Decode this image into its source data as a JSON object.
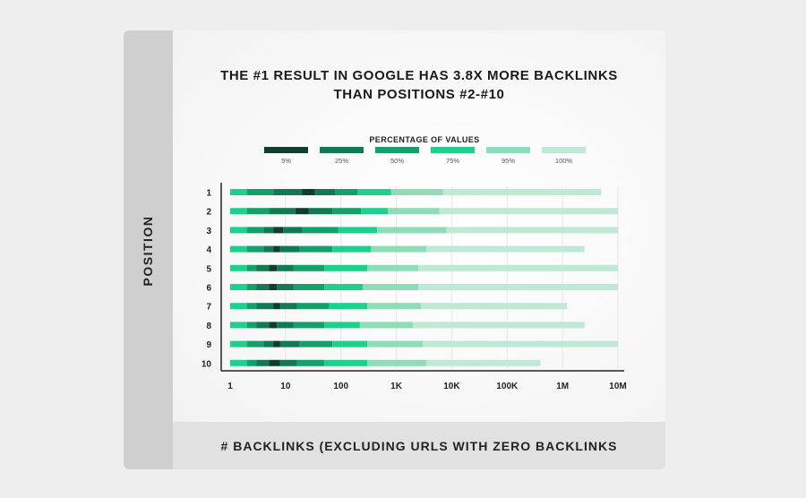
{
  "chart_data": {
    "type": "bar",
    "title_line1": "THE #1 RESULT IN GOOGLE HAS 3.8X MORE BACKLINKS",
    "title_line2": "THAN POSITIONS #2-#10",
    "ylabel": "POSITION",
    "xlabel": "# BACKLINKS (EXCLUDING URLS WITH ZERO BACKLINKS",
    "legend_title": "PERCENTAGE OF VALUES",
    "legend_position": "top-center",
    "x_scale": "log",
    "x_ticks": [
      "1",
      "10",
      "100",
      "1K",
      "10K",
      "100K",
      "1M",
      "10M"
    ],
    "x_tick_values": [
      1,
      10,
      100,
      1000,
      10000,
      100000,
      1000000,
      10000000
    ],
    "xlim": [
      1,
      10000000
    ],
    "categories": [
      "1",
      "2",
      "3",
      "4",
      "5",
      "6",
      "7",
      "8",
      "9",
      "10"
    ],
    "percentiles": [
      {
        "label": "5%",
        "color": "#103d2e"
      },
      {
        "label": "25%",
        "color": "#127a52"
      },
      {
        "label": "50%",
        "color": "#15a06b"
      },
      {
        "label": "75%",
        "color": "#1fd08c"
      },
      {
        "label": "95%",
        "color": "#8fdcb8"
      },
      {
        "label": "100%",
        "color": "#bfe8d5"
      }
    ],
    "rows": [
      {
        "position": "1",
        "segments": [
          {
            "from": 1,
            "to": 2,
            "color": "#1fd08c"
          },
          {
            "from": 2,
            "to": 6,
            "color": "#15a06b"
          },
          {
            "from": 6,
            "to": 20,
            "color": "#127a52"
          },
          {
            "from": 20,
            "to": 34,
            "color": "#103d2e"
          },
          {
            "from": 34,
            "to": 80,
            "color": "#127a52"
          },
          {
            "from": 80,
            "to": 200,
            "color": "#15a06b"
          },
          {
            "from": 200,
            "to": 800,
            "color": "#1fd08c"
          },
          {
            "from": 800,
            "to": 7000,
            "color": "#8fdcb8"
          },
          {
            "from": 7000,
            "to": 5000000,
            "color": "#bfe8d5"
          }
        ]
      },
      {
        "position": "2",
        "segments": [
          {
            "from": 1,
            "to": 2,
            "color": "#1fd08c"
          },
          {
            "from": 2,
            "to": 5,
            "color": "#15a06b"
          },
          {
            "from": 5,
            "to": 15,
            "color": "#127a52"
          },
          {
            "from": 15,
            "to": 26,
            "color": "#103d2e"
          },
          {
            "from": 26,
            "to": 70,
            "color": "#127a52"
          },
          {
            "from": 70,
            "to": 230,
            "color": "#15a06b"
          },
          {
            "from": 230,
            "to": 700,
            "color": "#1fd08c"
          },
          {
            "from": 700,
            "to": 6000,
            "color": "#8fdcb8"
          },
          {
            "from": 6000,
            "to": 10000000,
            "color": "#bfe8d5"
          }
        ]
      },
      {
        "position": "3",
        "segments": [
          {
            "from": 1,
            "to": 2,
            "color": "#1fd08c"
          },
          {
            "from": 2,
            "to": 4,
            "color": "#15a06b"
          },
          {
            "from": 4,
            "to": 6,
            "color": "#127a52"
          },
          {
            "from": 6,
            "to": 9,
            "color": "#103d2e"
          },
          {
            "from": 9,
            "to": 20,
            "color": "#127a52"
          },
          {
            "from": 20,
            "to": 90,
            "color": "#15a06b"
          },
          {
            "from": 90,
            "to": 450,
            "color": "#1fd08c"
          },
          {
            "from": 450,
            "to": 8000,
            "color": "#8fdcb8"
          },
          {
            "from": 8000,
            "to": 10000000,
            "color": "#bfe8d5"
          }
        ]
      },
      {
        "position": "4",
        "segments": [
          {
            "from": 1,
            "to": 2,
            "color": "#1fd08c"
          },
          {
            "from": 2,
            "to": 4,
            "color": "#15a06b"
          },
          {
            "from": 4,
            "to": 6,
            "color": "#127a52"
          },
          {
            "from": 6,
            "to": 8,
            "color": "#103d2e"
          },
          {
            "from": 8,
            "to": 18,
            "color": "#127a52"
          },
          {
            "from": 18,
            "to": 70,
            "color": "#15a06b"
          },
          {
            "from": 70,
            "to": 350,
            "color": "#1fd08c"
          },
          {
            "from": 350,
            "to": 3500,
            "color": "#8fdcb8"
          },
          {
            "from": 3500,
            "to": 2500000,
            "color": "#bfe8d5"
          }
        ]
      },
      {
        "position": "5",
        "segments": [
          {
            "from": 1,
            "to": 2,
            "color": "#1fd08c"
          },
          {
            "from": 2,
            "to": 3,
            "color": "#15a06b"
          },
          {
            "from": 3,
            "to": 5,
            "color": "#127a52"
          },
          {
            "from": 5,
            "to": 7,
            "color": "#103d2e"
          },
          {
            "from": 7,
            "to": 14,
            "color": "#127a52"
          },
          {
            "from": 14,
            "to": 50,
            "color": "#15a06b"
          },
          {
            "from": 50,
            "to": 300,
            "color": "#1fd08c"
          },
          {
            "from": 300,
            "to": 2500,
            "color": "#8fdcb8"
          },
          {
            "from": 2500,
            "to": 10000000,
            "color": "#bfe8d5"
          }
        ]
      },
      {
        "position": "6",
        "segments": [
          {
            "from": 1,
            "to": 2,
            "color": "#1fd08c"
          },
          {
            "from": 2,
            "to": 3,
            "color": "#15a06b"
          },
          {
            "from": 3,
            "to": 5,
            "color": "#127a52"
          },
          {
            "from": 5,
            "to": 7,
            "color": "#103d2e"
          },
          {
            "from": 7,
            "to": 14,
            "color": "#127a52"
          },
          {
            "from": 14,
            "to": 50,
            "color": "#15a06b"
          },
          {
            "from": 50,
            "to": 250,
            "color": "#1fd08c"
          },
          {
            "from": 250,
            "to": 2500,
            "color": "#8fdcb8"
          },
          {
            "from": 2500,
            "to": 10000000,
            "color": "#bfe8d5"
          }
        ]
      },
      {
        "position": "7",
        "segments": [
          {
            "from": 1,
            "to": 2,
            "color": "#1fd08c"
          },
          {
            "from": 2,
            "to": 3,
            "color": "#15a06b"
          },
          {
            "from": 3,
            "to": 6,
            "color": "#127a52"
          },
          {
            "from": 6,
            "to": 8,
            "color": "#103d2e"
          },
          {
            "from": 8,
            "to": 16,
            "color": "#127a52"
          },
          {
            "from": 16,
            "to": 60,
            "color": "#15a06b"
          },
          {
            "from": 60,
            "to": 300,
            "color": "#1fd08c"
          },
          {
            "from": 300,
            "to": 2800,
            "color": "#8fdcb8"
          },
          {
            "from": 2800,
            "to": 1200000,
            "color": "#bfe8d5"
          }
        ]
      },
      {
        "position": "8",
        "segments": [
          {
            "from": 1,
            "to": 2,
            "color": "#1fd08c"
          },
          {
            "from": 2,
            "to": 3,
            "color": "#15a06b"
          },
          {
            "from": 3,
            "to": 5,
            "color": "#127a52"
          },
          {
            "from": 5,
            "to": 7,
            "color": "#103d2e"
          },
          {
            "from": 7,
            "to": 14,
            "color": "#127a52"
          },
          {
            "from": 14,
            "to": 50,
            "color": "#15a06b"
          },
          {
            "from": 50,
            "to": 220,
            "color": "#1fd08c"
          },
          {
            "from": 220,
            "to": 2000,
            "color": "#8fdcb8"
          },
          {
            "from": 2000,
            "to": 2500000,
            "color": "#bfe8d5"
          }
        ]
      },
      {
        "position": "9",
        "segments": [
          {
            "from": 1,
            "to": 2,
            "color": "#1fd08c"
          },
          {
            "from": 2,
            "to": 4,
            "color": "#15a06b"
          },
          {
            "from": 4,
            "to": 6,
            "color": "#127a52"
          },
          {
            "from": 6,
            "to": 8,
            "color": "#103d2e"
          },
          {
            "from": 8,
            "to": 18,
            "color": "#127a52"
          },
          {
            "from": 18,
            "to": 70,
            "color": "#15a06b"
          },
          {
            "from": 70,
            "to": 300,
            "color": "#1fd08c"
          },
          {
            "from": 300,
            "to": 3000,
            "color": "#8fdcb8"
          },
          {
            "from": 3000,
            "to": 10000000,
            "color": "#bfe8d5"
          }
        ]
      },
      {
        "position": "10",
        "segments": [
          {
            "from": 1,
            "to": 2,
            "color": "#1fd08c"
          },
          {
            "from": 2,
            "to": 3,
            "color": "#15a06b"
          },
          {
            "from": 3,
            "to": 5,
            "color": "#127a52"
          },
          {
            "from": 5,
            "to": 8,
            "color": "#103d2e"
          },
          {
            "from": 8,
            "to": 16,
            "color": "#127a52"
          },
          {
            "from": 16,
            "to": 50,
            "color": "#15a06b"
          },
          {
            "from": 50,
            "to": 300,
            "color": "#1fd08c"
          },
          {
            "from": 300,
            "to": 3500,
            "color": "#8fdcb8"
          },
          {
            "from": 3500,
            "to": 400000,
            "color": "#bfe8d5"
          }
        ]
      }
    ]
  }
}
